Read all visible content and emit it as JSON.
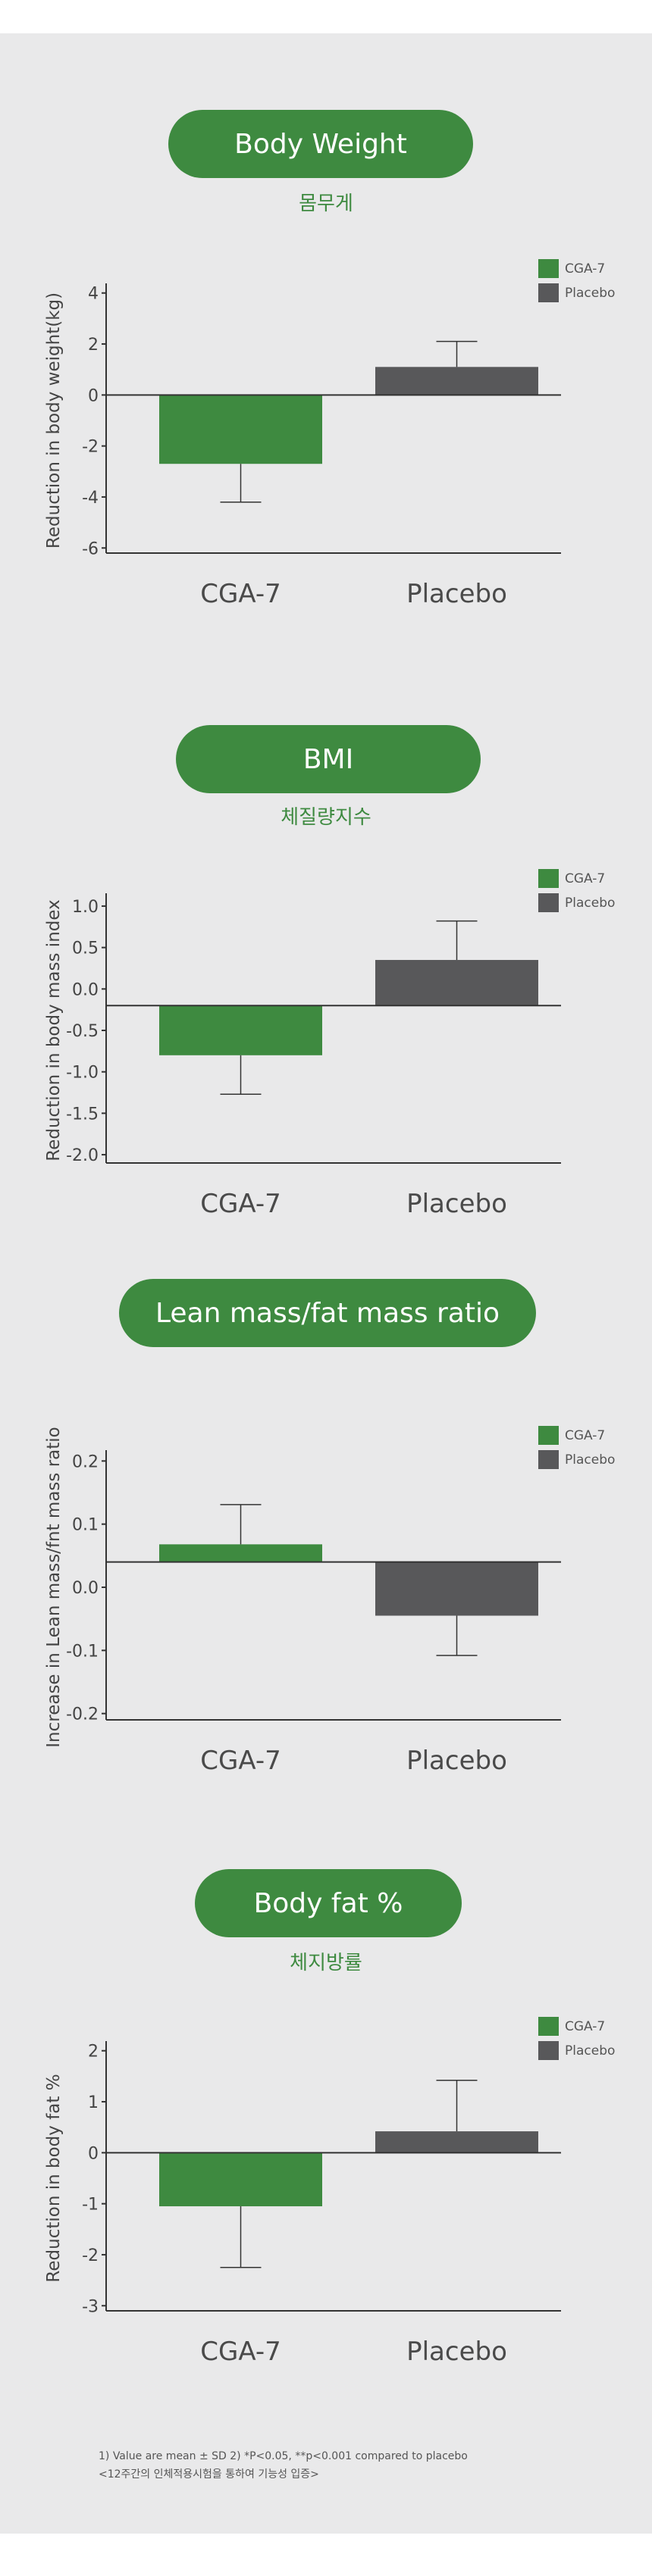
{
  "colors": {
    "cga": "#3e8a40",
    "placebo": "#58585a",
    "background": "#e9e9ea",
    "axis": "#333333"
  },
  "sections": [
    {
      "title": "Body Weight",
      "subtitle": "몸무게",
      "chart_data": {
        "type": "bar",
        "categories": [
          "CGA-7",
          "Placebo"
        ],
        "values": [
          -2.7,
          1.1
        ],
        "errors": [
          1.5,
          1.0
        ],
        "ylabel": "Reduction in body weight(kg)",
        "ylim": [
          -6.2,
          4.2
        ],
        "ticks": [
          "4",
          "2",
          "0",
          "-2",
          "-4",
          "-6"
        ],
        "tick_values": [
          4,
          2,
          0,
          -2,
          -4,
          -6
        ],
        "legend": [
          "CGA-7",
          "Placebo"
        ],
        "legend_position": "top-right"
      }
    },
    {
      "title": "BMI",
      "subtitle": "체질량지수",
      "chart_data": {
        "type": "bar",
        "categories": [
          "CGA-7",
          "Placebo"
        ],
        "values": [
          -0.8,
          0.35
        ],
        "errors": [
          0.47,
          0.47
        ],
        "ylabel": "Reduction in body mass index",
        "ylim": [
          -2.1,
          1.1
        ],
        "ticks": [
          "1.0",
          "0.5",
          "0.0",
          "-0.5",
          "-1.0",
          "-1.5",
          "-2.0"
        ],
        "tick_values": [
          1.0,
          0.5,
          0.0,
          -0.5,
          -1.0,
          -1.5,
          -2.0
        ],
        "zero_offset": -0.2,
        "legend": [
          "CGA-7",
          "Placebo"
        ],
        "legend_position": "top-right"
      }
    },
    {
      "title": "Lean mass/fat mass ratio",
      "subtitle": "",
      "chart_data": {
        "type": "bar",
        "categories": [
          "CGA-7",
          "Placebo"
        ],
        "values": [
          0.068,
          -0.045
        ],
        "errors": [
          0.063,
          0.063
        ],
        "ylabel": "Increase in Lean mass/fnt mass ratio",
        "ylim": [
          -0.21,
          0.21
        ],
        "ticks": [
          "0.2",
          "0.1",
          "0.0",
          "-0.1",
          "-0.2"
        ],
        "tick_values": [
          0.2,
          0.1,
          0.0,
          -0.1,
          -0.2
        ],
        "zero_offset": 0.04,
        "legend": [
          "CGA-7",
          "Placebo"
        ],
        "legend_position": "top-right"
      }
    },
    {
      "title": "Body fat %",
      "subtitle": "체지방률",
      "chart_data": {
        "type": "bar",
        "categories": [
          "CGA-7",
          "Placebo"
        ],
        "values": [
          -1.05,
          0.42
        ],
        "errors": [
          1.2,
          1.0
        ],
        "ylabel": "Reduction in body fat %",
        "ylim": [
          -3.1,
          2.1
        ],
        "ticks": [
          "2",
          "1",
          "0",
          "-1",
          "-2",
          "-3"
        ],
        "tick_values": [
          2,
          1,
          0,
          -1,
          -2,
          -3
        ],
        "legend": [
          "CGA-7",
          "Placebo"
        ],
        "legend_position": "top-right"
      }
    }
  ],
  "footnote": {
    "line1": "1) Value are mean ± SD   2) *P<0.05, **p<0.001 compared to placebo",
    "line2": "<12주간의 인체적용시험을 통하여 기능성 입증>"
  }
}
